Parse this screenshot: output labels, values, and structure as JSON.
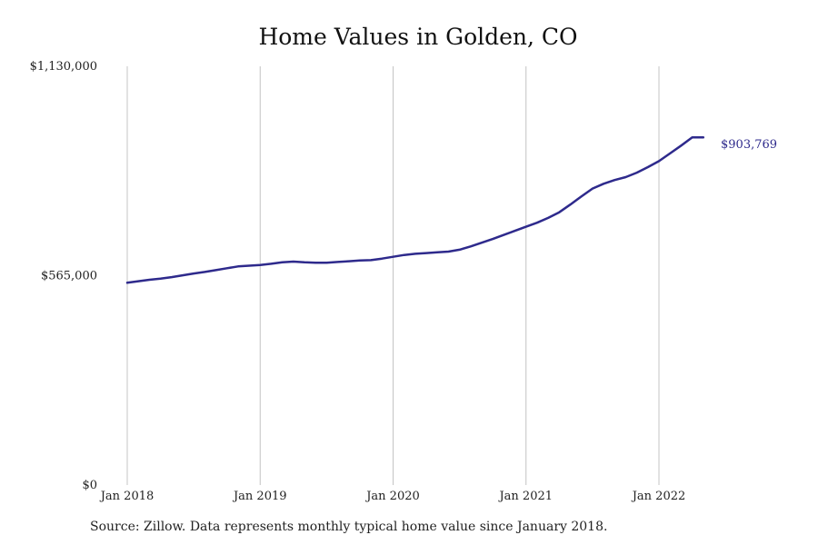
{
  "title": "Home Values in Golden, CO",
  "footer": "Source: Zillow. Data represents monthly typical home value since January 2018.",
  "colors": {
    "line": "#2e2a8c",
    "grid": "#c4c4c4",
    "text": "#222222"
  },
  "chart_data": {
    "type": "line",
    "title": "Home Values in Golden, CO",
    "xlabel": "",
    "ylabel": "",
    "grid": "vertical",
    "legend": "none",
    "xlim": [
      "2018-01",
      "2022-12"
    ],
    "ylim": [
      0,
      1130000
    ],
    "x_ticks": [
      {
        "date": "2018-01",
        "label": "Jan 2018"
      },
      {
        "date": "2019-01",
        "label": "Jan 2019"
      },
      {
        "date": "2020-01",
        "label": "Jan 2020"
      },
      {
        "date": "2021-01",
        "label": "Jan 2021"
      },
      {
        "date": "2022-01",
        "label": "Jan 2022"
      }
    ],
    "y_ticks": [
      {
        "value": 0,
        "label": "$0"
      },
      {
        "value": 565000,
        "label": "$565,000"
      },
      {
        "value": 1130000,
        "label": "$1,130,000"
      }
    ],
    "end_label": "$903,769",
    "series": [
      {
        "x": [
          "2018-01",
          "2018-02",
          "2018-03",
          "2018-04",
          "2018-05",
          "2018-06",
          "2018-07",
          "2018-08",
          "2018-09",
          "2018-10",
          "2018-11",
          "2018-12",
          "2019-01",
          "2019-02",
          "2019-03",
          "2019-04",
          "2019-05",
          "2019-06",
          "2019-07",
          "2019-08",
          "2019-09",
          "2019-10",
          "2019-11",
          "2019-12",
          "2020-01",
          "2020-02",
          "2020-03",
          "2020-04",
          "2020-05",
          "2020-06",
          "2020-07",
          "2020-08",
          "2020-09",
          "2020-10",
          "2020-11",
          "2020-12",
          "2021-01",
          "2021-02",
          "2021-03",
          "2021-04",
          "2021-05",
          "2021-06",
          "2021-07",
          "2021-08",
          "2021-09",
          "2021-10",
          "2021-11",
          "2021-12",
          "2022-01",
          "2022-02",
          "2022-03",
          "2022-04",
          "2022-05"
        ],
        "values": [
          546000,
          550000,
          554000,
          557000,
          561000,
          566000,
          571000,
          575000,
          580000,
          585000,
          590000,
          592000,
          594000,
          597000,
          601000,
          603000,
          601000,
          600000,
          600000,
          602000,
          604000,
          606000,
          607000,
          611000,
          616000,
          621000,
          624000,
          626000,
          628000,
          630000,
          635000,
          644000,
          654000,
          664000,
          675000,
          686000,
          697000,
          708000,
          721000,
          736000,
          757000,
          779000,
          800000,
          813000,
          823000,
          831000,
          843000,
          858000,
          874000,
          895000,
          916000,
          938000,
          903769
        ]
      }
    ]
  }
}
